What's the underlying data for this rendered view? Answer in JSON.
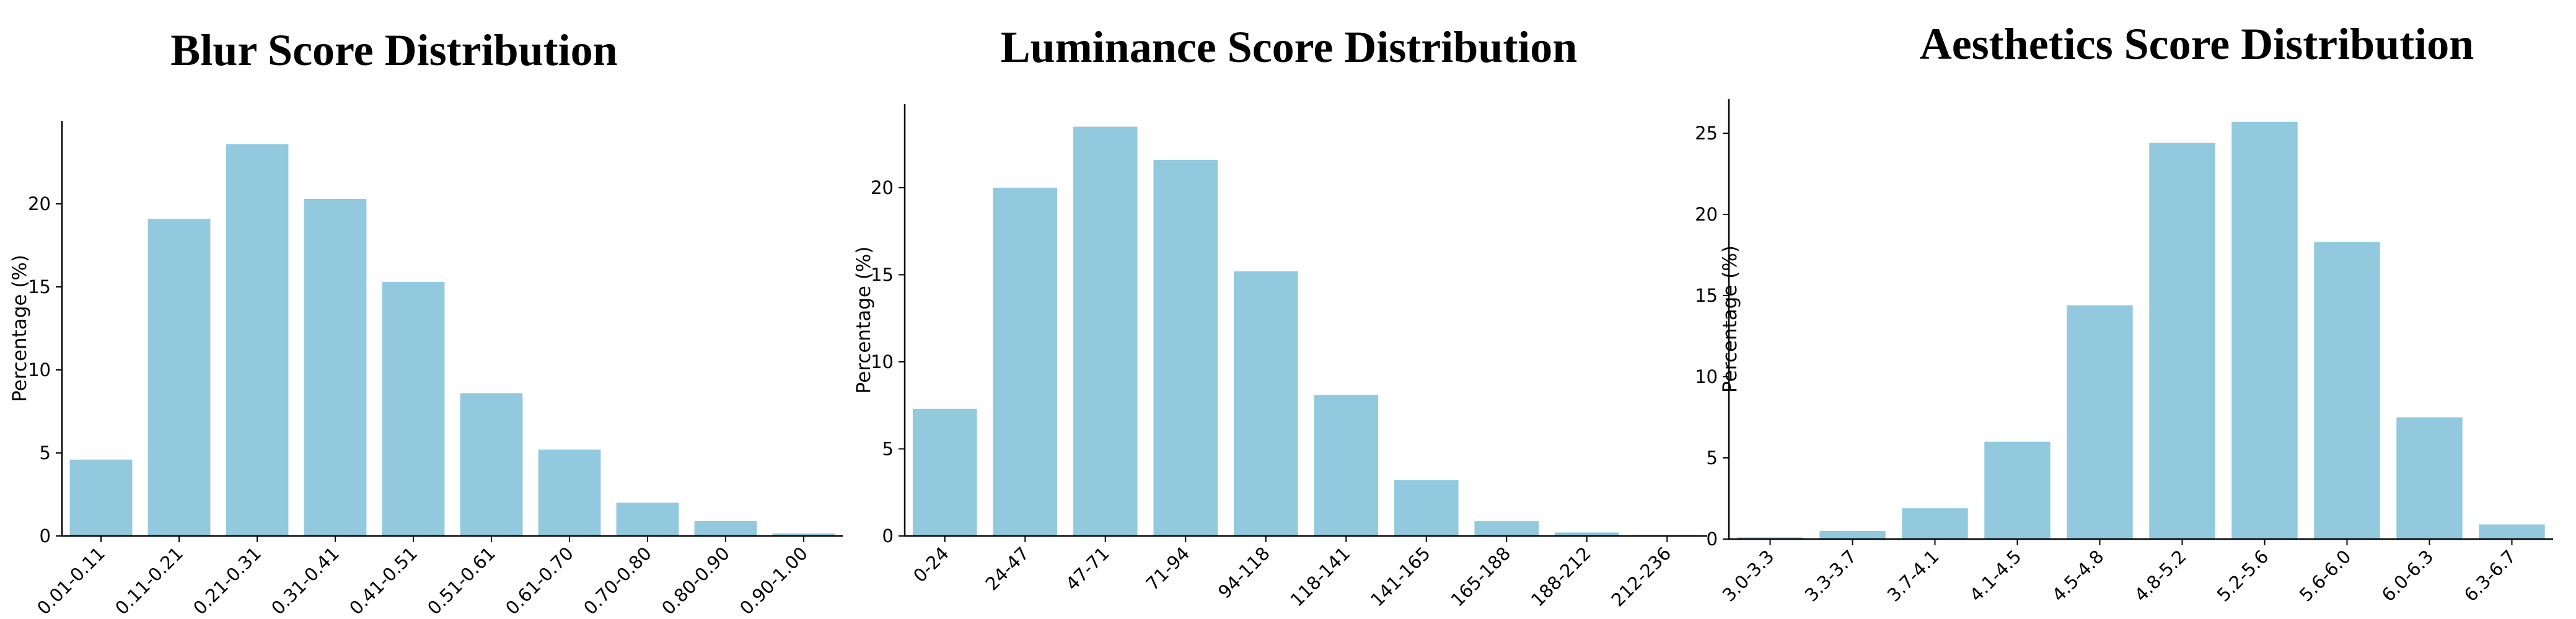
{
  "chart_data": [
    {
      "type": "bar",
      "title": "Blur Score Distribution",
      "xlabel": "",
      "ylabel": "Percentage (%)",
      "categories": [
        "0.01-0.11",
        "0.11-0.21",
        "0.21-0.31",
        "0.31-0.41",
        "0.41-0.51",
        "0.51-0.61",
        "0.61-0.70",
        "0.70-0.80",
        "0.80-0.90",
        "0.90-1.00"
      ],
      "values": [
        4.6,
        19.1,
        23.6,
        20.3,
        15.3,
        8.6,
        5.2,
        2.0,
        0.9,
        0.15
      ],
      "ylim": [
        0,
        25
      ],
      "yticks": [
        0,
        5,
        10,
        15,
        20
      ],
      "color": "#92c9df",
      "grid": false,
      "legend": "none"
    },
    {
      "type": "bar",
      "title": "Luminance Score Distribution",
      "xlabel": "",
      "ylabel": "Percentage (%)",
      "categories": [
        "0-24",
        "24-47",
        "47-71",
        "71-94",
        "94-118",
        "118-141",
        "141-165",
        "165-188",
        "188-212",
        "212-236"
      ],
      "values": [
        7.3,
        20.0,
        23.5,
        21.6,
        15.2,
        8.1,
        3.2,
        0.85,
        0.2,
        0.05
      ],
      "ylim": [
        0,
        24.8
      ],
      "yticks": [
        0,
        5,
        10,
        15,
        20
      ],
      "color": "#92c9df",
      "grid": false,
      "legend": "none"
    },
    {
      "type": "bar",
      "title": "Aesthetics Score Distribution",
      "xlabel": "",
      "ylabel": "Percentage (%)",
      "categories": [
        "3.0-3.3",
        "3.3-3.7",
        "3.7-4.1",
        "4.1-4.5",
        "4.5-4.8",
        "4.8-5.2",
        "5.2-5.6",
        "5.6-6.0",
        "6.0-6.3",
        "6.3-6.7"
      ],
      "values": [
        0.1,
        0.5,
        1.9,
        6.0,
        14.4,
        24.4,
        25.7,
        18.3,
        7.5,
        0.9
      ],
      "ylim": [
        0,
        27.1
      ],
      "yticks": [
        0,
        5,
        10,
        15,
        20,
        25
      ],
      "color": "#92c9df",
      "grid": false,
      "legend": "none"
    }
  ]
}
